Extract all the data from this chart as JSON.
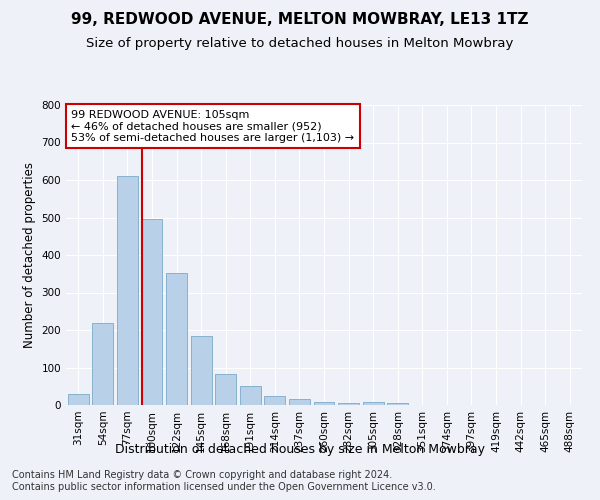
{
  "title1": "99, REDWOOD AVENUE, MELTON MOWBRAY, LE13 1TZ",
  "title2": "Size of property relative to detached houses in Melton Mowbray",
  "xlabel": "Distribution of detached houses by size in Melton Mowbray",
  "ylabel": "Number of detached properties",
  "categories": [
    "31sqm",
    "54sqm",
    "77sqm",
    "100sqm",
    "122sqm",
    "145sqm",
    "168sqm",
    "191sqm",
    "214sqm",
    "237sqm",
    "260sqm",
    "282sqm",
    "305sqm",
    "328sqm",
    "351sqm",
    "374sqm",
    "397sqm",
    "419sqm",
    "442sqm",
    "465sqm",
    "488sqm"
  ],
  "values": [
    30,
    218,
    610,
    495,
    353,
    185,
    83,
    52,
    25,
    15,
    8,
    5,
    7,
    5,
    1,
    1,
    0,
    0,
    0,
    0,
    0
  ],
  "bar_color": "#b8d0e8",
  "bar_edge_color": "#7aaac8",
  "vline_color": "#cc0000",
  "annotation_line1": "99 REDWOOD AVENUE: 105sqm",
  "annotation_line2": "← 46% of detached houses are smaller (952)",
  "annotation_line3": "53% of semi-detached houses are larger (1,103) →",
  "annotation_box_facecolor": "#ffffff",
  "annotation_box_edgecolor": "#cc0000",
  "ylim_max": 800,
  "yticks": [
    0,
    100,
    200,
    300,
    400,
    500,
    600,
    700,
    800
  ],
  "footer1": "Contains HM Land Registry data © Crown copyright and database right 2024.",
  "footer2": "Contains public sector information licensed under the Open Government Licence v3.0.",
  "bg_color": "#eef2f8",
  "grid_color": "#ffffff",
  "title1_fs": 11,
  "title2_fs": 9.5,
  "xlabel_fs": 9,
  "ylabel_fs": 8.5,
  "tick_fs": 7.5,
  "footer_fs": 7,
  "ann_fs": 8
}
